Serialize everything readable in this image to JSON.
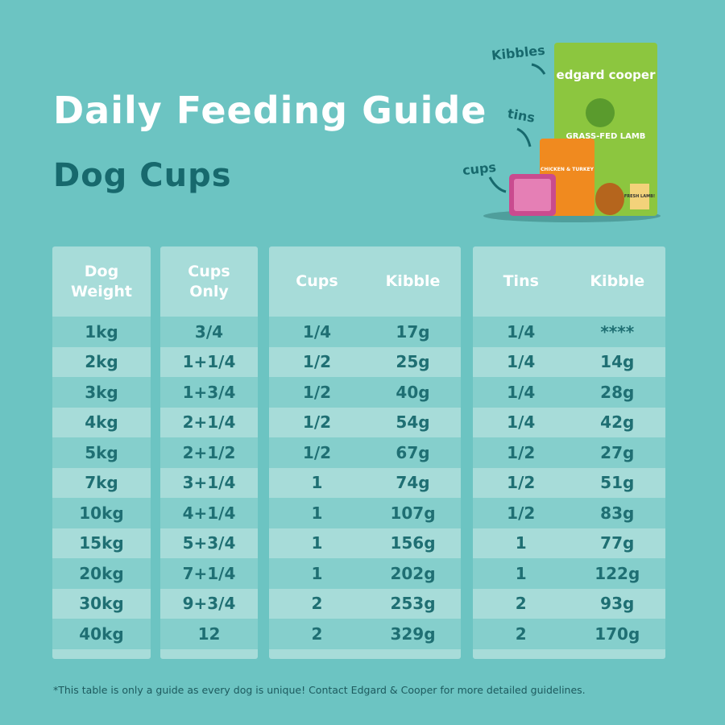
{
  "header": {
    "title": "Daily Feeding Guide",
    "subtitle": "Dog Cups"
  },
  "product": {
    "labels": [
      "Kibbles",
      "tins",
      "cups"
    ],
    "brand": "edgard cooper",
    "bag_name": "GRASS-FED LAMB",
    "tin_name": "CHICKEN & TURKEY",
    "badge": "FRESH LAMB!"
  },
  "tables": [
    {
      "headers": [
        "Dog Weight"
      ],
      "rows": [
        [
          "1kg"
        ],
        [
          "2kg"
        ],
        [
          "3kg"
        ],
        [
          "4kg"
        ],
        [
          "5kg"
        ],
        [
          "7kg"
        ],
        [
          "10kg"
        ],
        [
          "15kg"
        ],
        [
          "20kg"
        ],
        [
          "30kg"
        ],
        [
          "40kg"
        ]
      ]
    },
    {
      "headers": [
        "Cups Only"
      ],
      "rows": [
        [
          "3/4"
        ],
        [
          "1+1/4"
        ],
        [
          "1+3/4"
        ],
        [
          "2+1/4"
        ],
        [
          "2+1/2"
        ],
        [
          "3+1/4"
        ],
        [
          "4+1/4"
        ],
        [
          "5+3/4"
        ],
        [
          "7+1/4"
        ],
        [
          "9+3/4"
        ],
        [
          "12"
        ]
      ]
    },
    {
      "headers": [
        "Cups",
        "Kibble"
      ],
      "rows": [
        [
          "1/4",
          "17g"
        ],
        [
          "1/2",
          "25g"
        ],
        [
          "1/2",
          "40g"
        ],
        [
          "1/2",
          "54g"
        ],
        [
          "1/2",
          "67g"
        ],
        [
          "1",
          "74g"
        ],
        [
          "1",
          "107g"
        ],
        [
          "1",
          "156g"
        ],
        [
          "1",
          "202g"
        ],
        [
          "2",
          "253g"
        ],
        [
          "2",
          "329g"
        ]
      ]
    },
    {
      "headers": [
        "Tins",
        "Kibble"
      ],
      "rows": [
        [
          "1/4",
          "****"
        ],
        [
          "1/4",
          "14g"
        ],
        [
          "1/4",
          "28g"
        ],
        [
          "1/4",
          "42g"
        ],
        [
          "1/2",
          "27g"
        ],
        [
          "1/2",
          "51g"
        ],
        [
          "1/2",
          "83g"
        ],
        [
          "1",
          "77g"
        ],
        [
          "1",
          "122g"
        ],
        [
          "2",
          "93g"
        ],
        [
          "2",
          "170g"
        ]
      ]
    }
  ],
  "footnote": "*This table is only a guide as every dog is unique! Contact Edgard & Cooper for more detailed guidelines."
}
